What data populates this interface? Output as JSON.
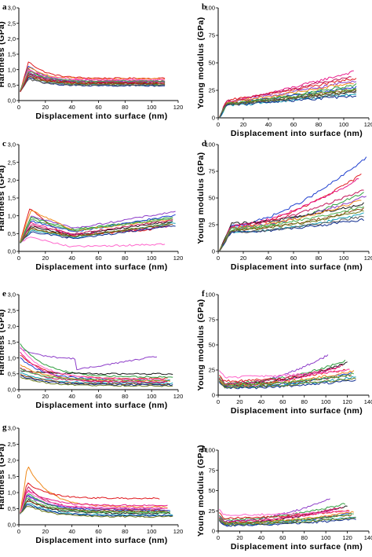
{
  "chart_data": [
    {
      "panel": "a",
      "type": "line",
      "xlabel": "Displacement into surface (nm)",
      "ylabel": "Hardness (GPa)",
      "xlim": [
        0,
        120
      ],
      "ylim": [
        0,
        3.0
      ],
      "xticks": [
        "0",
        "20",
        "40",
        "60",
        "80",
        "100",
        "120"
      ],
      "yticks": [
        "0,0",
        "0,5",
        "1,0",
        "1,5",
        "2,0",
        "2,5",
        "3,0"
      ],
      "shape": "peak",
      "curve_count": 22,
      "series": [
        {
          "color": "#e0191e",
          "peak": 1.28,
          "end": 0.72,
          "xmax": 110
        },
        {
          "color": "#1f3fcf",
          "peak": 1.15,
          "end": 0.6,
          "xmax": 110
        },
        {
          "color": "#1a1a1a",
          "peak": 1.05,
          "end": 0.55,
          "xmax": 108
        },
        {
          "color": "#e81a8a",
          "peak": 1.0,
          "end": 0.65,
          "xmax": 110
        },
        {
          "color": "#2e9e3e",
          "peak": 0.95,
          "end": 0.58,
          "xmax": 110
        },
        {
          "color": "#8e3ec9",
          "peak": 0.92,
          "end": 0.62,
          "xmax": 108
        },
        {
          "color": "#f08a1c",
          "peak": 1.1,
          "end": 0.7,
          "xmax": 110
        },
        {
          "color": "#17a2b8",
          "peak": 0.85,
          "end": 0.5,
          "xmax": 110
        },
        {
          "color": "#8b4513",
          "peak": 0.9,
          "end": 0.55,
          "xmax": 105
        },
        {
          "color": "#6a7a1a",
          "peak": 0.8,
          "end": 0.52,
          "xmax": 110
        },
        {
          "color": "#c2185b",
          "peak": 0.88,
          "end": 0.6,
          "xmax": 110
        },
        {
          "color": "#0d2b8f",
          "peak": 0.75,
          "end": 0.48,
          "xmax": 110
        },
        {
          "color": "#ff66cc",
          "peak": 1.02,
          "end": 0.68,
          "xmax": 110
        },
        {
          "color": "#5a5a5a",
          "peak": 0.7,
          "end": 0.5,
          "xmax": 110
        },
        {
          "color": "#4caf50",
          "peak": 0.98,
          "end": 0.63,
          "xmax": 110
        },
        {
          "color": "#b71c1c",
          "peak": 0.82,
          "end": 0.56,
          "xmax": 110
        }
      ]
    },
    {
      "panel": "b",
      "type": "line",
      "xlabel": "Displacement into surface (nm)",
      "ylabel": "Young modulus (GPa)",
      "xlim": [
        0,
        120
      ],
      "ylim": [
        0,
        100
      ],
      "xticks": [
        "0",
        "20",
        "40",
        "60",
        "80",
        "100",
        "120"
      ],
      "yticks": [
        "0",
        "25",
        "50",
        "75",
        "100"
      ],
      "shape": "rise",
      "curve_count": 22,
      "series": [
        {
          "color": "#e81a8a",
          "start": 14,
          "end": 42,
          "xmax": 108
        },
        {
          "color": "#e0191e",
          "start": 16,
          "end": 36,
          "xmax": 110
        },
        {
          "color": "#8e3ec9",
          "start": 14,
          "end": 34,
          "xmax": 110
        },
        {
          "color": "#2e9e3e",
          "start": 12,
          "end": 30,
          "xmax": 110
        },
        {
          "color": "#1f3fcf",
          "start": 13,
          "end": 28,
          "xmax": 110
        },
        {
          "color": "#1a1a1a",
          "start": 12,
          "end": 24,
          "xmax": 110
        },
        {
          "color": "#f08a1c",
          "start": 14,
          "end": 32,
          "xmax": 108
        },
        {
          "color": "#17a2b8",
          "start": 11,
          "end": 22,
          "xmax": 110
        },
        {
          "color": "#8b4513",
          "start": 13,
          "end": 26,
          "xmax": 110
        },
        {
          "color": "#c2185b",
          "start": 15,
          "end": 38,
          "xmax": 106
        },
        {
          "color": "#0d2b8f",
          "start": 12,
          "end": 20,
          "xmax": 110
        },
        {
          "color": "#4caf50",
          "start": 13,
          "end": 27,
          "xmax": 110
        },
        {
          "color": "#6a7a1a",
          "start": 12,
          "end": 25,
          "xmax": 110
        },
        {
          "color": "#5a5a5a",
          "start": 12,
          "end": 23,
          "xmax": 110
        }
      ]
    },
    {
      "panel": "c",
      "type": "line",
      "xlabel": "Displacement into surface (nm)",
      "ylabel": "Hardness (GPa)",
      "xlim": [
        0,
        120
      ],
      "ylim": [
        0,
        3.0
      ],
      "xticks": [
        "0",
        "20",
        "40",
        "60",
        "80",
        "100",
        "120"
      ],
      "yticks": [
        "0,0",
        "0,5",
        "1,0",
        "1,5",
        "2,0",
        "2,5",
        "3,0"
      ],
      "shape": "peak-rise",
      "curve_count": 22,
      "series": [
        {
          "color": "#e0191e",
          "peak": 1.2,
          "end": 0.62,
          "xmax": 100
        },
        {
          "color": "#8e3ec9",
          "peak": 1.0,
          "end": 1.12,
          "xmax": 118
        },
        {
          "color": "#2e9e3e",
          "peak": 0.95,
          "end": 0.95,
          "xmax": 116
        },
        {
          "color": "#1f3fcf",
          "peak": 0.85,
          "end": 1.02,
          "xmax": 118
        },
        {
          "color": "#1a1a1a",
          "peak": 0.7,
          "end": 0.85,
          "xmax": 116
        },
        {
          "color": "#e81a8a",
          "peak": 0.8,
          "end": 0.7,
          "xmax": 114
        },
        {
          "color": "#f08a1c",
          "peak": 1.15,
          "end": 0.9,
          "xmax": 116
        },
        {
          "color": "#17a2b8",
          "peak": 0.6,
          "end": 0.8,
          "xmax": 118
        },
        {
          "color": "#8b4513",
          "peak": 0.65,
          "end": 0.75,
          "xmax": 116
        },
        {
          "color": "#c2185b",
          "peak": 0.75,
          "end": 0.88,
          "xmax": 116
        },
        {
          "color": "#0d2b8f",
          "peak": 0.55,
          "end": 0.72,
          "xmax": 118
        },
        {
          "color": "#ff66cc",
          "peak": 0.4,
          "end": 0.2,
          "xmax": 110
        },
        {
          "color": "#4caf50",
          "peak": 0.9,
          "end": 0.92,
          "xmax": 116
        },
        {
          "color": "#6a7a1a",
          "peak": 0.62,
          "end": 0.78,
          "xmax": 114
        }
      ]
    },
    {
      "panel": "d",
      "type": "line",
      "xlabel": "Displacement into surface (nm)",
      "ylabel": "Young modulus (GPa)",
      "xlim": [
        0,
        120
      ],
      "ylim": [
        0,
        100
      ],
      "xticks": [
        "0",
        "20",
        "40",
        "60",
        "80",
        "100",
        "120"
      ],
      "yticks": [
        "0",
        "25",
        "50",
        "75",
        "100"
      ],
      "shape": "rise-steep",
      "curve_count": 22,
      "series": [
        {
          "color": "#1f3fcf",
          "start": 24,
          "end": 88,
          "xmax": 118
        },
        {
          "color": "#e0191e",
          "start": 22,
          "end": 72,
          "xmax": 114
        },
        {
          "color": "#e81a8a",
          "start": 24,
          "end": 68,
          "xmax": 112
        },
        {
          "color": "#2e9e3e",
          "start": 20,
          "end": 55,
          "xmax": 116
        },
        {
          "color": "#8e3ec9",
          "start": 22,
          "end": 52,
          "xmax": 118
        },
        {
          "color": "#1a1a1a",
          "start": 26,
          "end": 45,
          "xmax": 116
        },
        {
          "color": "#f08a1c",
          "start": 22,
          "end": 48,
          "xmax": 114
        },
        {
          "color": "#17a2b8",
          "start": 18,
          "end": 35,
          "xmax": 116
        },
        {
          "color": "#8b4513",
          "start": 20,
          "end": 40,
          "xmax": 116
        },
        {
          "color": "#c2185b",
          "start": 24,
          "end": 58,
          "xmax": 116
        },
        {
          "color": "#0d2b8f",
          "start": 18,
          "end": 30,
          "xmax": 116
        },
        {
          "color": "#4caf50",
          "start": 22,
          "end": 42,
          "xmax": 116
        },
        {
          "color": "#6a7a1a",
          "start": 20,
          "end": 38,
          "xmax": 116
        },
        {
          "color": "#5a5a5a",
          "start": 18,
          "end": 33,
          "xmax": 116
        }
      ]
    },
    {
      "panel": "e",
      "type": "line",
      "xlabel": "Displacement into surface (nm)",
      "ylabel": "Hardness (GPa)",
      "xlim": [
        0,
        120
      ],
      "ylim": [
        0,
        3.0
      ],
      "xticks": [
        "0",
        "20",
        "40",
        "60",
        "80",
        "100",
        "120"
      ],
      "yticks": [
        "0,0",
        "0,5",
        "1,0",
        "1,5",
        "2,0",
        "2,5",
        "3,0"
      ],
      "shape": "decay",
      "curve_count": 22,
      "series": [
        {
          "color": "#8e3ec9",
          "peak": 1.3,
          "end": 0.95,
          "xmax": 104
        },
        {
          "color": "#e0191e",
          "peak": 1.1,
          "end": 0.35,
          "xmax": 112
        },
        {
          "color": "#2e9e3e",
          "peak": 1.45,
          "end": 0.4,
          "xmax": 116
        },
        {
          "color": "#1f3fcf",
          "peak": 1.0,
          "end": 0.3,
          "xmax": 114
        },
        {
          "color": "#1a1a1a",
          "peak": 0.6,
          "end": 0.5,
          "xmax": 116
        },
        {
          "color": "#e81a8a",
          "peak": 1.2,
          "end": 0.22,
          "xmax": 110
        },
        {
          "color": "#f08a1c",
          "peak": 0.8,
          "end": 0.28,
          "xmax": 114
        },
        {
          "color": "#17a2b8",
          "peak": 0.55,
          "end": 0.2,
          "xmax": 116
        },
        {
          "color": "#8b4513",
          "peak": 0.5,
          "end": 0.18,
          "xmax": 114
        },
        {
          "color": "#c2185b",
          "peak": 0.7,
          "end": 0.25,
          "xmax": 112
        },
        {
          "color": "#0d2b8f",
          "peak": 0.45,
          "end": 0.15,
          "xmax": 116
        },
        {
          "color": "#4caf50",
          "peak": 0.65,
          "end": 0.3,
          "xmax": 114
        },
        {
          "color": "#ff66cc",
          "peak": 1.35,
          "end": 0.32,
          "xmax": 110
        },
        {
          "color": "#6a7a1a",
          "peak": 0.4,
          "end": 0.12,
          "xmax": 116
        }
      ]
    },
    {
      "panel": "f",
      "type": "line",
      "xlabel": "Displacement into surface (nm)",
      "ylabel": "Young modulus (GPa)",
      "xlim": [
        0,
        140
      ],
      "ylim": [
        0,
        100
      ],
      "xticks": [
        "0",
        "20",
        "40",
        "60",
        "80",
        "100",
        "120",
        "140"
      ],
      "yticks": [
        "0",
        "25",
        "50",
        "75",
        "100"
      ],
      "shape": "rise-late",
      "curve_count": 22,
      "series": [
        {
          "color": "#8e3ec9",
          "start": 10,
          "end": 40,
          "xmax": 102
        },
        {
          "color": "#2e9e3e",
          "start": 12,
          "end": 34,
          "xmax": 118
        },
        {
          "color": "#1a1a1a",
          "start": 10,
          "end": 32,
          "xmax": 120
        },
        {
          "color": "#e0191e",
          "start": 14,
          "end": 26,
          "xmax": 122
        },
        {
          "color": "#1f3fcf",
          "start": 8,
          "end": 22,
          "xmax": 124
        },
        {
          "color": "#e81a8a",
          "start": 9,
          "end": 28,
          "xmax": 112
        },
        {
          "color": "#f08a1c",
          "start": 10,
          "end": 24,
          "xmax": 126
        },
        {
          "color": "#17a2b8",
          "start": 8,
          "end": 18,
          "xmax": 128
        },
        {
          "color": "#8b4513",
          "start": 10,
          "end": 20,
          "xmax": 124
        },
        {
          "color": "#c2185b",
          "start": 12,
          "end": 30,
          "xmax": 116
        },
        {
          "color": "#0d2b8f",
          "start": 7,
          "end": 15,
          "xmax": 128
        },
        {
          "color": "#4caf50",
          "start": 10,
          "end": 21,
          "xmax": 126
        },
        {
          "color": "#6a7a1a",
          "start": 8,
          "end": 17,
          "xmax": 128
        },
        {
          "color": "#ff66cc",
          "start": 18,
          "end": 25,
          "xmax": 122
        }
      ]
    },
    {
      "panel": "g",
      "type": "line",
      "xlabel": "Displacement into surface (nm)",
      "ylabel": "Hardness (GPa)",
      "xlim": [
        0,
        120
      ],
      "ylim": [
        0,
        3.0
      ],
      "xticks": [
        "0",
        "20",
        "40",
        "60",
        "80",
        "100",
        "120"
      ],
      "yticks": [
        "0,0",
        "0,5",
        "1,0",
        "1,5",
        "2,0",
        "2,5",
        "3,0"
      ],
      "shape": "peak-decay",
      "curve_count": 22,
      "series": [
        {
          "color": "#f08a1c",
          "peak": 1.85,
          "end": 0.55,
          "xmax": 112
        },
        {
          "color": "#e0191e",
          "peak": 1.3,
          "end": 0.82,
          "xmax": 106
        },
        {
          "color": "#e81a8a",
          "peak": 1.1,
          "end": 0.6,
          "xmax": 112
        },
        {
          "color": "#1f3fcf",
          "peak": 0.95,
          "end": 0.45,
          "xmax": 114
        },
        {
          "color": "#8e3ec9",
          "peak": 0.9,
          "end": 0.5,
          "xmax": 110
        },
        {
          "color": "#2e9e3e",
          "peak": 1.0,
          "end": 0.4,
          "xmax": 114
        },
        {
          "color": "#1a1a1a",
          "peak": 0.8,
          "end": 0.35,
          "xmax": 114
        },
        {
          "color": "#17a2b8",
          "peak": 0.7,
          "end": 0.3,
          "xmax": 116
        },
        {
          "color": "#8b4513",
          "peak": 0.75,
          "end": 0.42,
          "xmax": 112
        },
        {
          "color": "#c2185b",
          "peak": 1.2,
          "end": 0.48,
          "xmax": 110
        },
        {
          "color": "#0d2b8f",
          "peak": 0.65,
          "end": 0.28,
          "xmax": 116
        },
        {
          "color": "#4caf50",
          "peak": 0.85,
          "end": 0.38,
          "xmax": 114
        },
        {
          "color": "#ff66cc",
          "peak": 1.05,
          "end": 0.52,
          "xmax": 112
        },
        {
          "color": "#6a7a1a",
          "peak": 0.6,
          "end": 0.25,
          "xmax": 116
        }
      ]
    },
    {
      "panel": "h",
      "type": "line",
      "xlabel": "Displacement into surface (nm)",
      "ylabel": "Young modulus (GPa)",
      "xlim": [
        0,
        140
      ],
      "ylim": [
        0,
        100
      ],
      "xticks": [
        "0",
        "20",
        "40",
        "60",
        "80",
        "100",
        "120",
        "140"
      ],
      "yticks": [
        "0",
        "25",
        "50",
        "75",
        "100"
      ],
      "shape": "rise-late",
      "curve_count": 22,
      "series": [
        {
          "color": "#8e3ec9",
          "start": 12,
          "end": 40,
          "xmax": 104
        },
        {
          "color": "#2e9e3e",
          "start": 14,
          "end": 34,
          "xmax": 118
        },
        {
          "color": "#1a1a1a",
          "start": 10,
          "end": 31,
          "xmax": 120
        },
        {
          "color": "#e0191e",
          "start": 16,
          "end": 26,
          "xmax": 122
        },
        {
          "color": "#1f3fcf",
          "start": 8,
          "end": 22,
          "xmax": 124
        },
        {
          "color": "#e81a8a",
          "start": 10,
          "end": 28,
          "xmax": 112
        },
        {
          "color": "#f08a1c",
          "start": 10,
          "end": 24,
          "xmax": 126
        },
        {
          "color": "#17a2b8",
          "start": 8,
          "end": 18,
          "xmax": 128
        },
        {
          "color": "#8b4513",
          "start": 10,
          "end": 20,
          "xmax": 124
        },
        {
          "color": "#c2185b",
          "start": 12,
          "end": 30,
          "xmax": 116
        },
        {
          "color": "#0d2b8f",
          "start": 7,
          "end": 15,
          "xmax": 128
        },
        {
          "color": "#4caf50",
          "start": 10,
          "end": 21,
          "xmax": 126
        },
        {
          "color": "#6a7a1a",
          "start": 8,
          "end": 17,
          "xmax": 128
        },
        {
          "color": "#ff66cc",
          "start": 20,
          "end": 25,
          "xmax": 122
        }
      ]
    }
  ]
}
